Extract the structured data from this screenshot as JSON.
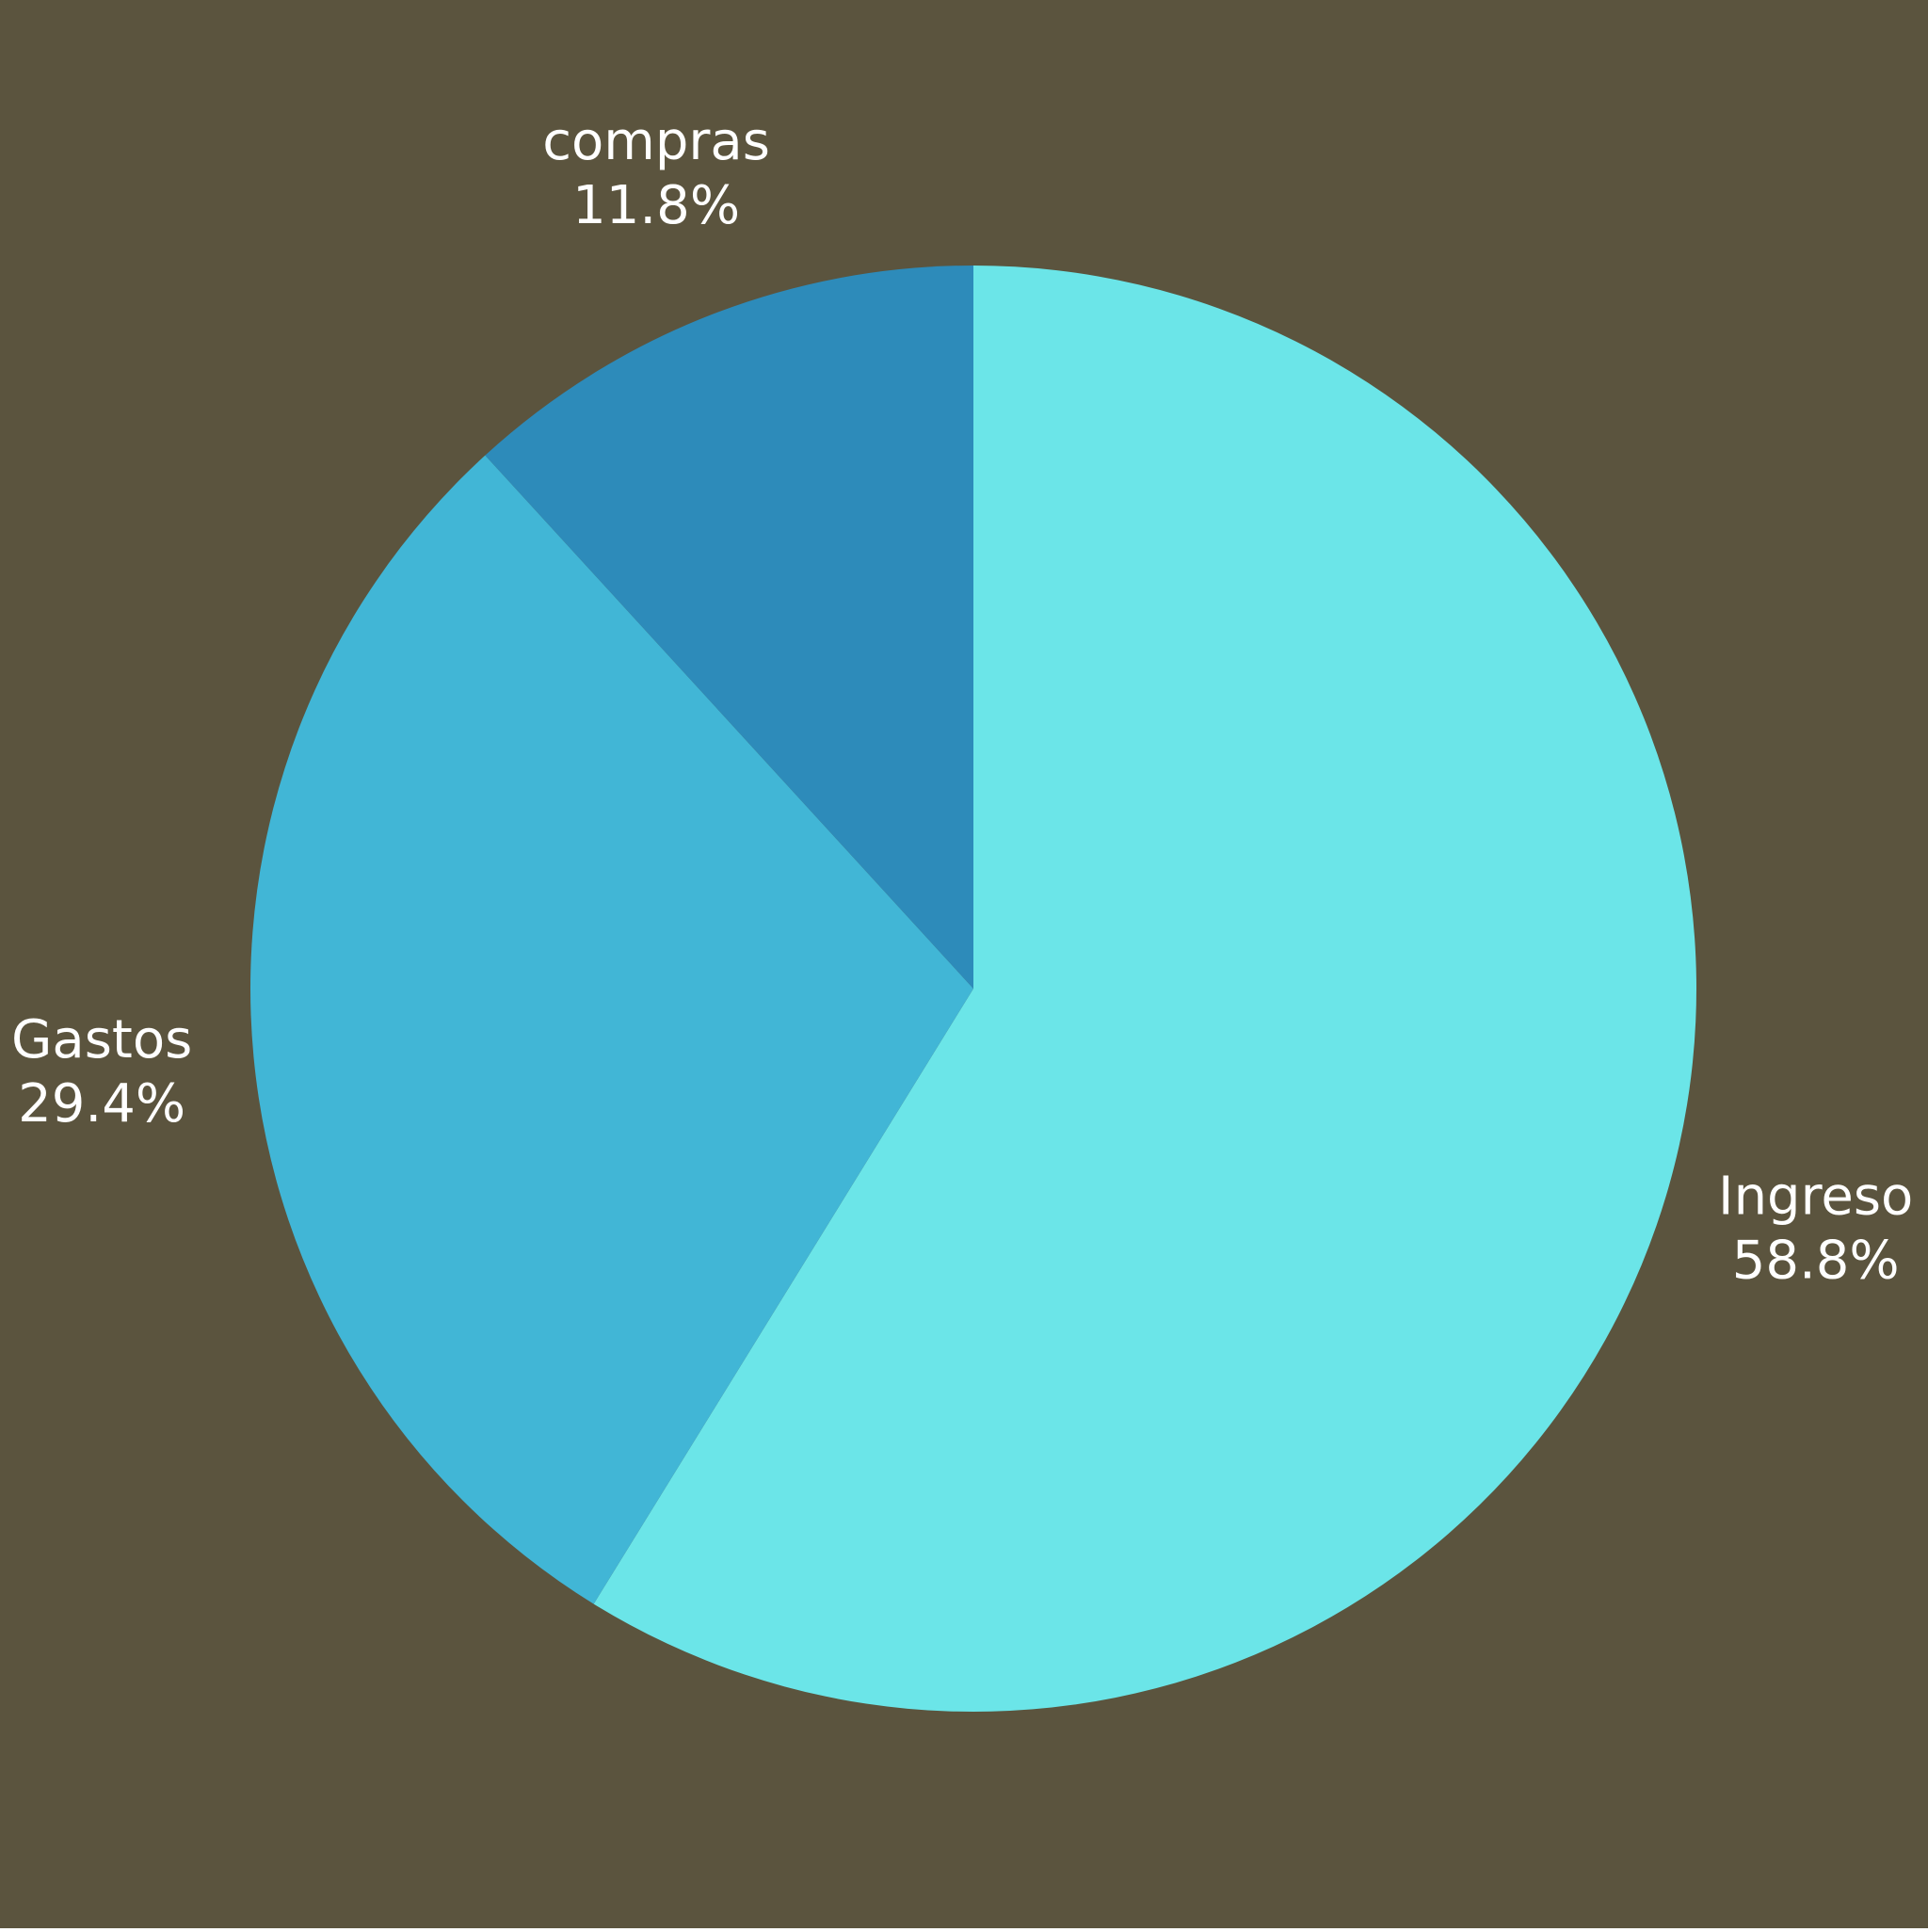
{
  "chart_data": {
    "type": "pie",
    "title": "",
    "start_angle_deg": 90,
    "direction": "clockwise",
    "slices": [
      {
        "label": "Ingreso",
        "value": 58.8,
        "percent_label": "58.8%",
        "color": "#6be5e8"
      },
      {
        "label": "Gastos",
        "value": 29.4,
        "percent_label": "29.4%",
        "color": "#41b6d6"
      },
      {
        "label": "compras",
        "value": 11.8,
        "percent_label": "11.8%",
        "color": "#2d8bba"
      }
    ],
    "label_position": "outside",
    "label_color": "#ffffff"
  },
  "colors": {
    "background": "#5b543e"
  }
}
